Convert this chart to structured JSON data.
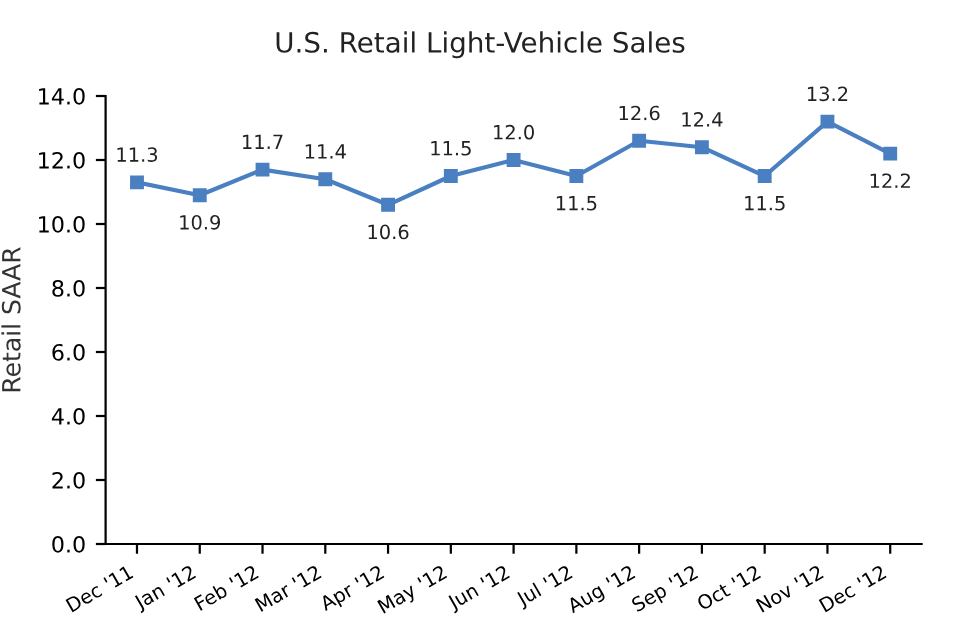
{
  "chart_data": {
    "type": "line",
    "title": "U.S. Retail Light-Vehicle Sales",
    "ylabel": "Retail SAAR",
    "categories": [
      "Dec '11",
      "Jan '12",
      "Feb '12",
      "Mar '12",
      "Apr '12",
      "May '12",
      "Jun '12",
      "Jul '12",
      "Aug '12",
      "Sep '12",
      "Oct '12",
      "Nov '12",
      "Dec '12"
    ],
    "series": [
      {
        "color": "#4a7fc1",
        "values": [
          11.3,
          10.9,
          11.7,
          11.4,
          10.6,
          11.5,
          12.0,
          11.5,
          12.6,
          12.4,
          11.5,
          13.2,
          12.2
        ],
        "value_labels": [
          "11.3",
          "10.9",
          "11.7",
          "11.4",
          "10.6",
          "11.5",
          "12.0",
          "11.5",
          "12.6",
          "12.4",
          "11.5",
          "13.2",
          "12.2"
        ]
      }
    ],
    "ylim": [
      0,
      14
    ],
    "yticks": [
      {
        "value": 0,
        "label": "0.0"
      },
      {
        "value": 2,
        "label": "2.0"
      },
      {
        "value": 4,
        "label": "4.0"
      },
      {
        "value": 6,
        "label": "6.0"
      },
      {
        "value": 8,
        "label": "8.0"
      },
      {
        "value": 10,
        "label": "10.0"
      },
      {
        "value": 12,
        "label": "12.0"
      },
      {
        "value": 14,
        "label": "14.0"
      }
    ],
    "marker": "square",
    "line_style": "solid"
  }
}
